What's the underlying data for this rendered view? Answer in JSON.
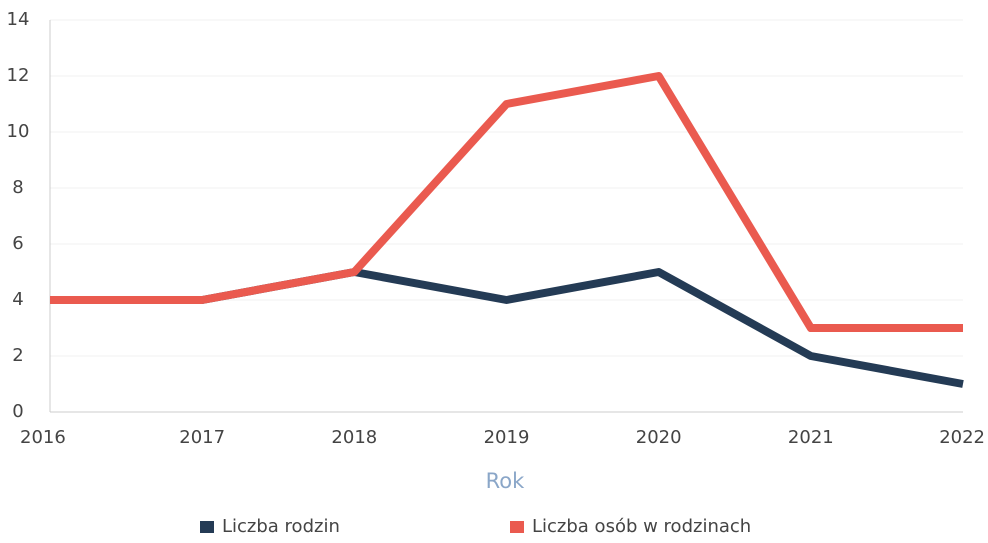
{
  "chart_data": {
    "type": "line",
    "x_label": "Rok",
    "categories": [
      "2016",
      "2017",
      "2018",
      "2019",
      "2020",
      "2021",
      "2022"
    ],
    "series": [
      {
        "name": "Liczba rodzin",
        "color": "#243b55",
        "values": [
          4,
          4,
          5,
          4,
          5,
          2,
          1
        ]
      },
      {
        "name": "Liczba osób w rodzinach",
        "color": "#ea5a4f",
        "values": [
          4,
          4,
          5,
          11,
          12,
          3,
          3
        ]
      }
    ],
    "ylim": [
      0,
      14
    ],
    "yticks": [
      0,
      2,
      4,
      6,
      8,
      10,
      12,
      14
    ],
    "grid": true,
    "legend": "bottom"
  }
}
